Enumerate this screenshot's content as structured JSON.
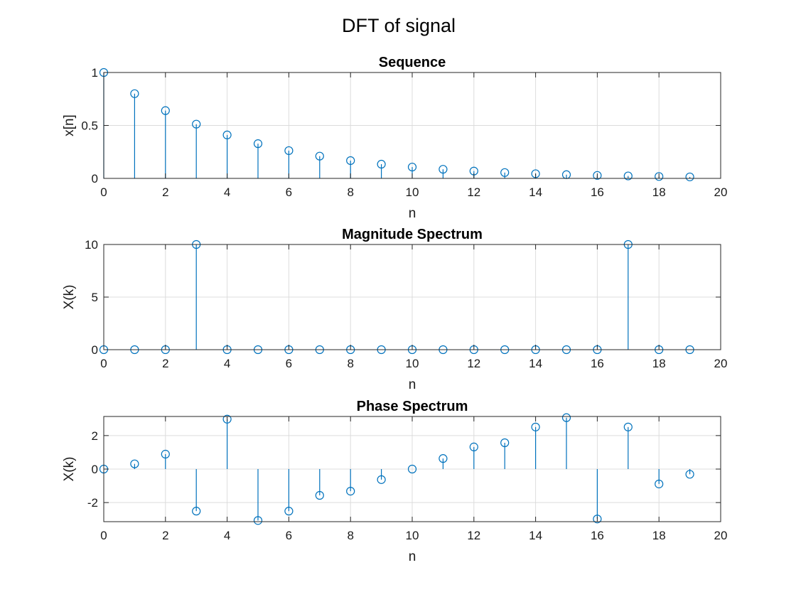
{
  "figure_title": "DFT of signal",
  "colors": {
    "stem": "#0072BD",
    "axis": "#262626",
    "grid": "#dcdcdc"
  },
  "chart_data": [
    {
      "type": "stem",
      "title": "Sequence",
      "xlabel": "n",
      "ylabel": "x[n]",
      "xlim": [
        0,
        20
      ],
      "ylim": [
        0,
        1
      ],
      "xticks": [
        0,
        2,
        4,
        6,
        8,
        10,
        12,
        14,
        16,
        18,
        20
      ],
      "yticks": [
        0,
        0.5,
        1
      ],
      "grid": true,
      "x": [
        0,
        1,
        2,
        3,
        4,
        5,
        6,
        7,
        8,
        9,
        10,
        11,
        12,
        13,
        14,
        15,
        16,
        17,
        18,
        19
      ],
      "y": [
        1,
        0.8,
        0.64,
        0.512,
        0.41,
        0.328,
        0.262,
        0.21,
        0.168,
        0.134,
        0.107,
        0.086,
        0.069,
        0.055,
        0.044,
        0.035,
        0.028,
        0.023,
        0.018,
        0.014
      ]
    },
    {
      "type": "stem",
      "title": "Magnitude Spectrum",
      "xlabel": "n",
      "ylabel": "X(k)",
      "xlim": [
        0,
        20
      ],
      "ylim": [
        0,
        10
      ],
      "xticks": [
        0,
        2,
        4,
        6,
        8,
        10,
        12,
        14,
        16,
        18,
        20
      ],
      "yticks": [
        0,
        5,
        10
      ],
      "grid": true,
      "x": [
        0,
        1,
        2,
        3,
        4,
        5,
        6,
        7,
        8,
        9,
        10,
        11,
        12,
        13,
        14,
        15,
        16,
        17,
        18,
        19
      ],
      "y": [
        0,
        0,
        0,
        10,
        0,
        0,
        0,
        0,
        0,
        0,
        0,
        0,
        0,
        0,
        0,
        0,
        0,
        10,
        0,
        0
      ]
    },
    {
      "type": "stem",
      "title": "Phase Spectrum",
      "xlabel": "n",
      "ylabel": "X(k)",
      "xlim": [
        0,
        20
      ],
      "ylim": [
        -3.14,
        3.14
      ],
      "xticks": [
        0,
        2,
        4,
        6,
        8,
        10,
        12,
        14,
        16,
        18,
        20
      ],
      "yticks": [
        -2,
        0,
        2
      ],
      "grid": true,
      "x": [
        0,
        1,
        2,
        3,
        4,
        5,
        6,
        7,
        8,
        9,
        10,
        11,
        12,
        13,
        14,
        15,
        16,
        17,
        18,
        19
      ],
      "y": [
        0,
        0.31,
        0.89,
        -2.51,
        2.98,
        -3.07,
        -2.51,
        -1.57,
        -1.32,
        -0.63,
        0,
        0.63,
        1.32,
        1.57,
        2.51,
        3.07,
        -2.98,
        2.51,
        -0.89,
        -0.31
      ]
    }
  ]
}
